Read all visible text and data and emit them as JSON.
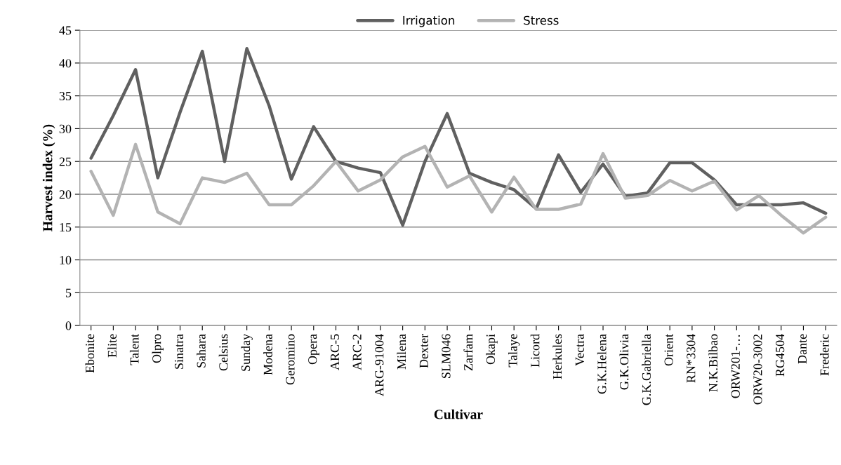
{
  "chart_data": {
    "type": "line",
    "xlabel": "Cultivar",
    "ylabel": "Harvest index (%)",
    "categories": [
      "Ebonite",
      "Elite",
      "Talent",
      "Olpro",
      "Sinatra",
      "Sahara",
      "Celsius",
      "Sunday",
      "Modena",
      "Geromino",
      "Opera",
      "ARC-5",
      "ARC-2",
      "ARG-91004",
      "Milena",
      "Dexter",
      "SLM046",
      "Zarfam",
      "Okapi",
      "Talaye",
      "Licord",
      "Herkules",
      "Vectra",
      "G.K.Helena",
      "G.K.Olivia",
      "G.K.Gabriella",
      "Orient",
      "RN*3304",
      "N.K.Bilbao",
      "ORW201-…",
      "ORW20-3002",
      "RG4504",
      "Dante",
      "Frederic"
    ],
    "series": [
      {
        "name": "Irrigation",
        "color": "#606060",
        "values": [
          25.5,
          32,
          39,
          22.5,
          32.5,
          41.8,
          25,
          42.2,
          33.5,
          22.3,
          30.3,
          25,
          24,
          23.3,
          15.3,
          25,
          32.3,
          23.2,
          21.8,
          20.7,
          17.8,
          26,
          20.3,
          24.6,
          19.7,
          20.2,
          24.8,
          24.8,
          22.2,
          18.4,
          18.4,
          18.4,
          18.7,
          17.1
        ]
      },
      {
        "name": "Stress",
        "color": "#b3b3b3",
        "values": [
          23.5,
          16.8,
          27.6,
          17.3,
          15.5,
          22.5,
          21.8,
          23.2,
          18.4,
          18.4,
          21.3,
          25,
          20.5,
          22.2,
          25.7,
          27.3,
          21.1,
          22.8,
          17.3,
          22.6,
          17.7,
          17.7,
          18.5,
          26.2,
          19.4,
          19.8,
          22.1,
          20.5,
          22,
          17.6,
          19.8,
          16.8,
          14.1,
          16.5
        ]
      }
    ],
    "ylim": [
      0,
      45
    ],
    "yticks": [
      0,
      5,
      10,
      15,
      20,
      25,
      30,
      35,
      40,
      45
    ],
    "grid": "y",
    "legend": "top",
    "marker": "none",
    "line_style": "solid"
  }
}
